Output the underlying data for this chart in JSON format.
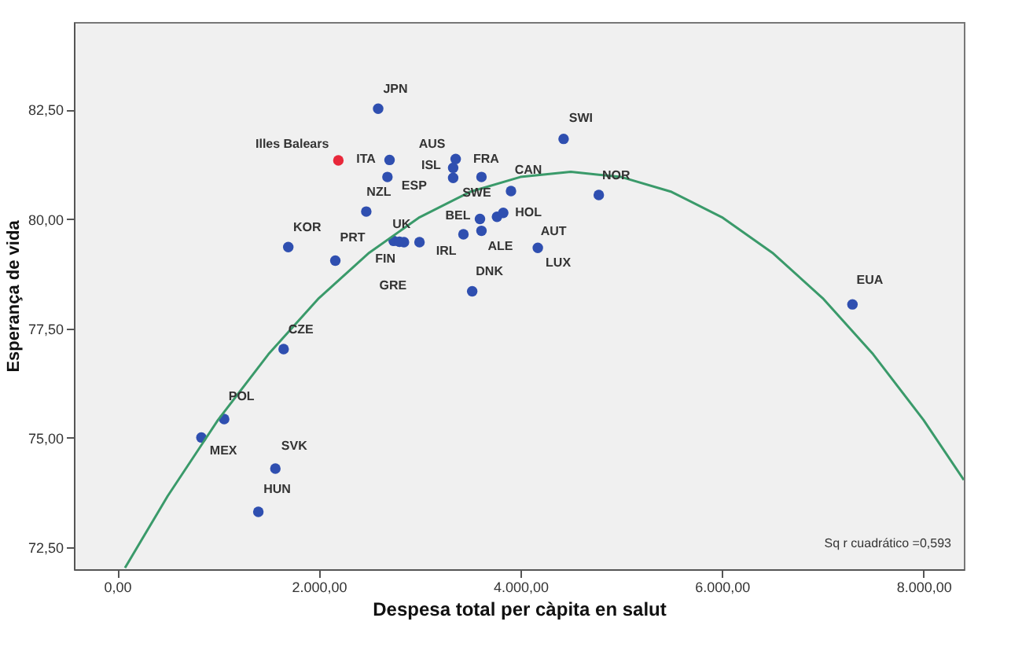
{
  "chart_data": {
    "type": "scatter",
    "xlabel": "Despesa total per càpita en salut",
    "ylabel": "Esperança de vida",
    "xlim": [
      -430,
      8400
    ],
    "ylim": [
      72,
      84.5
    ],
    "xticks": [
      {
        "value": 0,
        "label": "0,00"
      },
      {
        "value": 2000,
        "label": "2.000,00"
      },
      {
        "value": 4000,
        "label": "4.000,00"
      },
      {
        "value": 6000,
        "label": "6.000,00"
      },
      {
        "value": 8000,
        "label": "8.000,00"
      }
    ],
    "yticks": [
      {
        "value": 72.5,
        "label": "72,50"
      },
      {
        "value": 75,
        "label": "75,00"
      },
      {
        "value": 77.5,
        "label": "77,50"
      },
      {
        "value": 80,
        "label": "80,00"
      },
      {
        "value": 82.5,
        "label": "82,50"
      }
    ],
    "grid": false,
    "marker": "circle",
    "series": [
      {
        "color": "#2f4fb0",
        "x": [
          2589,
          2702,
          2681,
          2471,
          1697,
          2164,
          2743,
          2800,
          2845,
          2999,
          3358,
          3333,
          3333,
          3614,
          3907,
          4778,
          4429,
          3599,
          3614,
          3768,
          3830,
          3435,
          4173,
          3522,
          7295,
          1651,
          1061,
          835,
          1569,
          1400
        ],
        "values": [
          82.52,
          81.35,
          80.96,
          80.17,
          79.36,
          79.05,
          79.5,
          79.48,
          79.47,
          79.47,
          81.37,
          81.17,
          80.94,
          80.96,
          80.64,
          80.55,
          81.83,
          80.0,
          79.73,
          80.05,
          80.14,
          79.65,
          79.34,
          78.35,
          78.05,
          77.03,
          75.43,
          75.01,
          74.3,
          73.31
        ]
      },
      {
        "name": "Illes Balears",
        "color": "#e8283a",
        "x": [
          2194
        ],
        "values": [
          81.34
        ]
      },
      {
        "type": "line",
        "color": "#3a9a6a",
        "marker": "none",
        "line_style": "solid",
        "x": [
          77,
          500,
          1000,
          1500,
          2000,
          2500,
          3000,
          3500,
          4000,
          4500,
          5000,
          5500,
          6000,
          6500,
          7000,
          7500,
          8000,
          8400
        ],
        "values": [
          72.03,
          73.67,
          75.41,
          76.91,
          78.19,
          79.23,
          80.04,
          80.62,
          80.96,
          81.08,
          80.96,
          80.62,
          80.04,
          79.23,
          78.19,
          76.91,
          75.41,
          74.04
        ]
      }
    ],
    "annotations": [
      {
        "text": "JPN",
        "x": 2589,
        "y": 82.52
      },
      {
        "text": "ITA",
        "x": 2702,
        "y": 81.35
      },
      {
        "text": "AUS",
        "x": 3358,
        "y": 81.37
      },
      {
        "text": "ISL",
        "x": 3333,
        "y": 81.17
      },
      {
        "text": "FRA",
        "x": 3614,
        "y": 80.96
      },
      {
        "text": "NZL",
        "x": 2471,
        "y": 80.17
      },
      {
        "text": "ESP",
        "x": 2681,
        "y": 80.96
      },
      {
        "text": "SWE",
        "x": 3333,
        "y": 80.94
      },
      {
        "text": "CAN",
        "x": 3907,
        "y": 80.64
      },
      {
        "text": "SWI",
        "x": 4429,
        "y": 81.83
      },
      {
        "text": "NOR",
        "x": 4778,
        "y": 80.55
      },
      {
        "text": "KOR",
        "x": 1697,
        "y": 79.36
      },
      {
        "text": "PRT",
        "x": 2164,
        "y": 79.05
      },
      {
        "text": "UK",
        "x": 2743,
        "y": 79.5
      },
      {
        "text": "FIN",
        "x": 2800,
        "y": 79.48
      },
      {
        "text": "GRE",
        "x": 2845,
        "y": 79.47
      },
      {
        "text": "IRL",
        "x": 2999,
        "y": 79.47
      },
      {
        "text": "BEL",
        "x": 3599,
        "y": 80.0
      },
      {
        "text": "ALE",
        "x": 3614,
        "y": 79.73
      },
      {
        "text": "DNK",
        "x": 3522,
        "y": 78.35
      },
      {
        "text": "HOL",
        "x": 3830,
        "y": 80.14
      },
      {
        "text": "AUT",
        "x": 4173,
        "y": 79.34
      },
      {
        "text": "LUX",
        "x": 4173,
        "y": 79.34
      },
      {
        "text": "EUA",
        "x": 7295,
        "y": 78.05
      },
      {
        "text": "CZE",
        "x": 1651,
        "y": 77.03
      },
      {
        "text": "POL",
        "x": 1061,
        "y": 75.43
      },
      {
        "text": "MEX",
        "x": 835,
        "y": 75.01
      },
      {
        "text": "SVK",
        "x": 1569,
        "y": 74.3
      },
      {
        "text": "HUN",
        "x": 1400,
        "y": 73.31
      },
      "Sq r cuadrático =0,593"
    ]
  }
}
